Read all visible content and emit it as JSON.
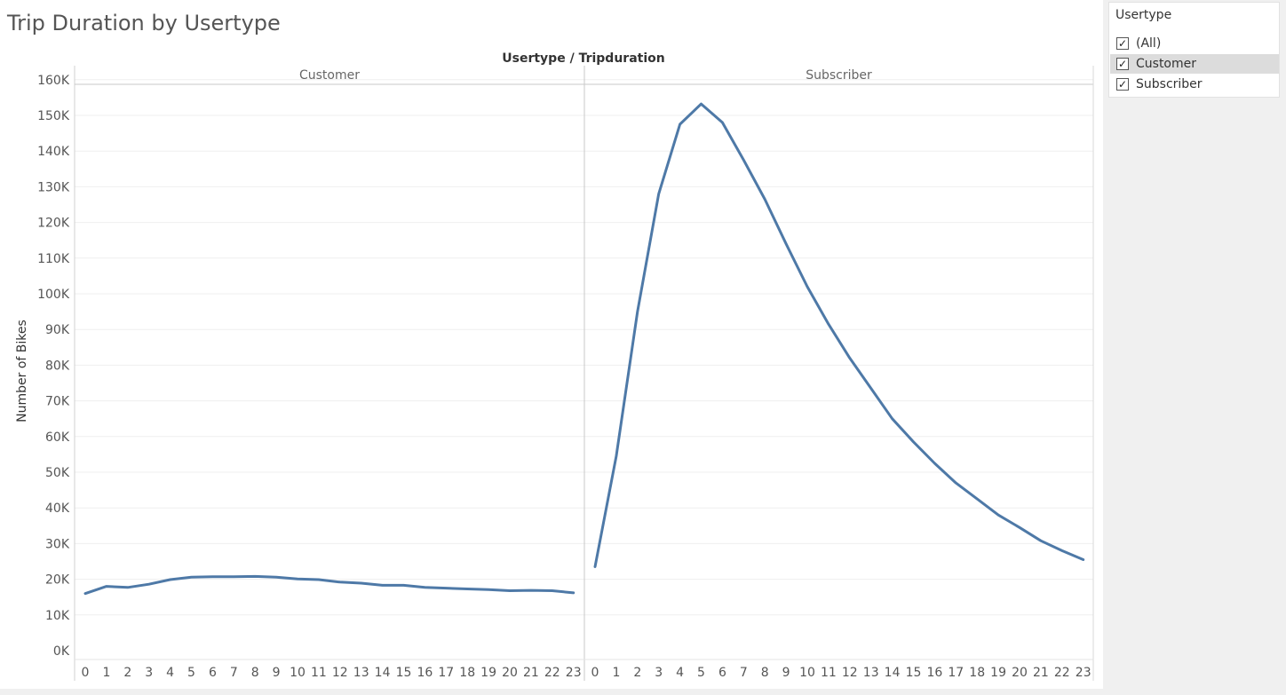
{
  "title": "Trip Duration by Usertype",
  "colors": {
    "line": "#4e79a7",
    "panel_bg": "#f0f0f0",
    "grid": "#efefef"
  },
  "filter": {
    "title": "Usertype",
    "items": [
      {
        "label": "(All)",
        "checked": true
      },
      {
        "label": "Customer",
        "checked": true,
        "highlighted": true
      },
      {
        "label": "Subscriber",
        "checked": true
      }
    ],
    "check_glyph": "✓"
  },
  "chart_data": {
    "type": "line",
    "title": "Usertype / Tripduration",
    "ylabel": "Number of Bikes",
    "ylim": [
      0,
      162000
    ],
    "yticks": [
      0,
      10000,
      20000,
      30000,
      40000,
      50000,
      60000,
      70000,
      80000,
      90000,
      100000,
      110000,
      120000,
      130000,
      140000,
      150000,
      160000
    ],
    "ytick_labels": [
      "0K",
      "10K",
      "20K",
      "30K",
      "40K",
      "50K",
      "60K",
      "70K",
      "80K",
      "90K",
      "100K",
      "110K",
      "120K",
      "130K",
      "140K",
      "150K",
      "160K"
    ],
    "x": [
      0,
      1,
      2,
      3,
      4,
      5,
      6,
      7,
      8,
      9,
      10,
      11,
      12,
      13,
      14,
      15,
      16,
      17,
      18,
      19,
      20,
      21,
      22,
      23
    ],
    "grid": true,
    "panels": [
      {
        "name": "Customer",
        "values": [
          16000,
          18000,
          17700,
          18600,
          19900,
          20600,
          20700,
          20700,
          20800,
          20600,
          20100,
          19900,
          19200,
          18900,
          18300,
          18300,
          17700,
          17500,
          17300,
          17100,
          16800,
          16900,
          16800,
          16200
        ]
      },
      {
        "name": "Subscriber",
        "values": [
          23500,
          54500,
          95000,
          128000,
          147500,
          153200,
          148000,
          137500,
          126500,
          114000,
          102000,
          91500,
          82000,
          73500,
          65000,
          58500,
          52500,
          47000,
          42500,
          38000,
          34500,
          30800,
          28000,
          25500
        ]
      }
    ]
  }
}
